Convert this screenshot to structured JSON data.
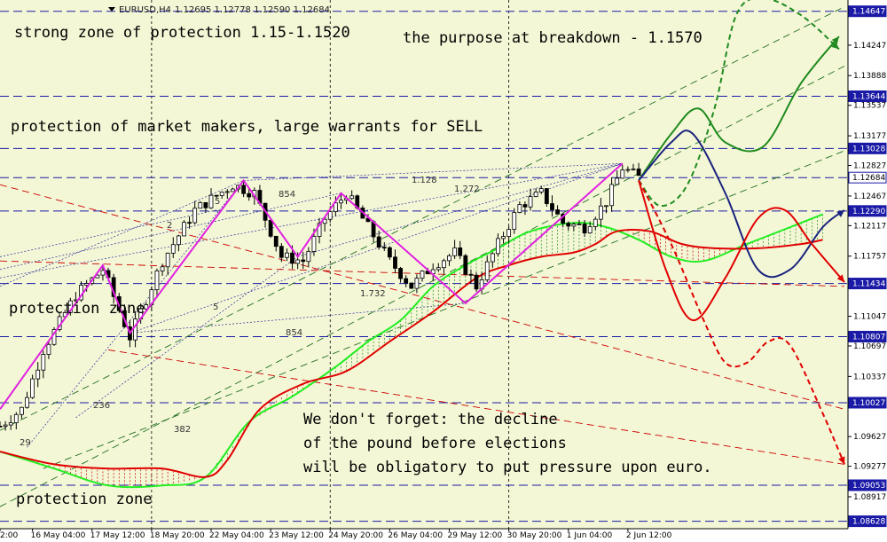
{
  "header": {
    "symbol": "EURUSD,H4",
    "ohlc": "1.12695 1.12778 1.12590 1.12684"
  },
  "annotations": [
    "strong zone of protection 1.15-1.1520",
    "the purpose at breakdown - 1.1570",
    "protection of market makers, large warrants for SELL",
    "protection zone",
    "protection zone",
    "We don't forget: the decline",
    "of the pound before elections",
    "will be obligatory to put pressure upon euro."
  ],
  "fib_labels": [
    "1.128",
    "1.272",
    "854",
    "1.732",
    "854",
    "5",
    "236",
    "382",
    "2",
    "5",
    "29"
  ],
  "chart_data": {
    "type": "line",
    "symbol": "EURUSD",
    "timeframe": "H4",
    "ylim": [
      1.0854,
      1.1478
    ],
    "xlim": [
      0,
      156
    ],
    "y_ticks": [
      "1.14647",
      "1.14247",
      "1.13888",
      "1.13644",
      "1.13537",
      "1.13177",
      "1.13028",
      "1.12827",
      "1.12684",
      "1.12467",
      "1.12290",
      "1.12117",
      "1.11757",
      "1.11434",
      "1.11047",
      "1.10807",
      "1.10697",
      "1.10337",
      "1.10027",
      "1.09627",
      "1.09277",
      "1.09053",
      "1.08917",
      "1.08628"
    ],
    "highlighted_levels": [
      "1.14647",
      "1.13644",
      "1.13028",
      "1.12684",
      "1.12290",
      "1.11434",
      "1.10807",
      "1.10027",
      "1.09053",
      "1.08628"
    ],
    "x_labels": [
      {
        "i": 0,
        "label": "2:00"
      },
      {
        "i": 6,
        "label": "16 May 04:00"
      },
      {
        "i": 17,
        "label": "17 May 12:00"
      },
      {
        "i": 28,
        "label": "18 May 20:00"
      },
      {
        "i": 39,
        "label": "22 May 04:00"
      },
      {
        "i": 50,
        "label": "23 May 12:00"
      },
      {
        "i": 61,
        "label": "24 May 20:00"
      },
      {
        "i": 72,
        "label": "26 May 04:00"
      },
      {
        "i": 83,
        "label": "29 May 12:00"
      },
      {
        "i": 94,
        "label": "30 May 20:00"
      },
      {
        "i": 105,
        "label": "1 Jun 04:00"
      },
      {
        "i": 116,
        "label": "2 Jun 12:00"
      }
    ],
    "price_anchors": [
      [
        0,
        1.0975
      ],
      [
        4,
        1.0995
      ],
      [
        8,
        1.1065
      ],
      [
        14,
        1.113
      ],
      [
        19,
        1.116
      ],
      [
        24,
        1.108
      ],
      [
        30,
        1.117
      ],
      [
        36,
        1.123
      ],
      [
        43,
        1.126
      ],
      [
        47,
        1.125
      ],
      [
        52,
        1.1175
      ],
      [
        56,
        1.117
      ],
      [
        60,
        1.122
      ],
      [
        64,
        1.125
      ],
      [
        68,
        1.121
      ],
      [
        72,
        1.117
      ],
      [
        76,
        1.114
      ],
      [
        80,
        1.1165
      ],
      [
        84,
        1.118
      ],
      [
        88,
        1.114
      ],
      [
        92,
        1.119
      ],
      [
        96,
        1.1235
      ],
      [
        100,
        1.125
      ],
      [
        104,
        1.1215
      ],
      [
        108,
        1.121
      ],
      [
        112,
        1.124
      ],
      [
        115,
        1.128
      ],
      [
        118,
        1.12684
      ]
    ],
    "zigzag": [
      [
        0,
        1.0995
      ],
      [
        19,
        1.1165
      ],
      [
        24,
        1.1085
      ],
      [
        45,
        1.1265
      ],
      [
        55,
        1.1175
      ],
      [
        63,
        1.125
      ],
      [
        86,
        1.112
      ],
      [
        115,
        1.1285
      ]
    ],
    "kumo_span_a": [
      [
        0,
        1.0945
      ],
      [
        10,
        1.0925
      ],
      [
        20,
        1.0905
      ],
      [
        30,
        1.0905
      ],
      [
        38,
        1.0915
      ],
      [
        46,
        1.098
      ],
      [
        54,
        1.101
      ],
      [
        62,
        1.1045
      ],
      [
        68,
        1.1075
      ],
      [
        74,
        1.11
      ],
      [
        80,
        1.114
      ],
      [
        86,
        1.1165
      ],
      [
        92,
        1.1185
      ],
      [
        98,
        1.1205
      ],
      [
        106,
        1.1215
      ],
      [
        112,
        1.121
      ],
      [
        118,
        1.1195
      ],
      [
        124,
        1.1175
      ],
      [
        130,
        1.117
      ],
      [
        138,
        1.119
      ],
      [
        146,
        1.121
      ],
      [
        152,
        1.1225
      ]
    ],
    "kumo_span_b": [
      [
        0,
        1.0945
      ],
      [
        10,
        1.093
      ],
      [
        20,
        1.0925
      ],
      [
        30,
        1.0925
      ],
      [
        38,
        1.0915
      ],
      [
        42,
        1.0935
      ],
      [
        48,
        1.0995
      ],
      [
        56,
        1.1025
      ],
      [
        64,
        1.104
      ],
      [
        72,
        1.1075
      ],
      [
        80,
        1.111
      ],
      [
        88,
        1.115
      ],
      [
        94,
        1.1165
      ],
      [
        100,
        1.1175
      ],
      [
        106,
        1.118
      ],
      [
        110,
        1.119
      ],
      [
        114,
        1.1205
      ],
      [
        120,
        1.1205
      ],
      [
        126,
        1.119
      ],
      [
        132,
        1.1185
      ],
      [
        140,
        1.1185
      ],
      [
        148,
        1.119
      ],
      [
        152,
        1.1195
      ]
    ],
    "channel_lines": [
      {
        "from": [
          0,
          1.097
        ],
        "to": [
          156,
          1.147
        ],
        "style": "long-dash",
        "color": "#1f6e1f"
      },
      {
        "from": [
          0,
          1.088
        ],
        "to": [
          156,
          1.14
        ],
        "style": "long-dash",
        "color": "#1f6e1f"
      },
      {
        "from": [
          8,
          1.0925
        ],
        "to": [
          156,
          1.13
        ],
        "style": "long-dash",
        "color": "#1f6e1f"
      },
      {
        "from": [
          0,
          1.117
        ],
        "to": [
          156,
          1.114
        ],
        "style": "long-dash",
        "color": "#cc0000"
      },
      {
        "from": [
          0,
          1.126
        ],
        "to": [
          156,
          1.0995
        ],
        "style": "long-dash",
        "color": "#cc0000"
      },
      {
        "from": [
          20,
          1.1065
        ],
        "to": [
          156,
          1.093
        ],
        "style": "long-dash",
        "color": "#cc0000"
      }
    ],
    "forecast_paths": [
      {
        "name": "green-solid",
        "color": "#1f8a1f",
        "style": "solid",
        "points": [
          [
            118,
            1.1265
          ],
          [
            124,
            1.132
          ],
          [
            129,
            1.135
          ],
          [
            134,
            1.131
          ],
          [
            141,
            1.1305
          ],
          [
            148,
            1.138
          ],
          [
            155,
            1.1435
          ]
        ]
      },
      {
        "name": "green-dashed",
        "color": "#1f8a1f",
        "style": "dashed",
        "points": [
          [
            118,
            1.1265
          ],
          [
            122,
            1.1235
          ],
          [
            127,
            1.126
          ],
          [
            132,
            1.135
          ],
          [
            136,
            1.146
          ],
          [
            141,
            1.148
          ],
          [
            148,
            1.146
          ],
          [
            155,
            1.142
          ]
        ]
      },
      {
        "name": "navy",
        "color": "#1a237e",
        "style": "solid",
        "points": [
          [
            118,
            1.1265
          ],
          [
            124,
            1.131
          ],
          [
            128,
            1.132
          ],
          [
            134,
            1.125
          ],
          [
            140,
            1.116
          ],
          [
            146,
            1.116
          ],
          [
            152,
            1.121
          ],
          [
            156,
            1.123
          ]
        ]
      },
      {
        "name": "red-solid",
        "color": "#e00000",
        "style": "solid",
        "points": [
          [
            118,
            1.1265
          ],
          [
            123,
            1.116
          ],
          [
            128,
            1.11
          ],
          [
            134,
            1.115
          ],
          [
            140,
            1.122
          ],
          [
            145,
            1.123
          ],
          [
            150,
            1.119
          ],
          [
            156,
            1.1145
          ]
        ]
      },
      {
        "name": "red-dashed",
        "color": "#e00000",
        "style": "dashed",
        "points": [
          [
            118,
            1.1265
          ],
          [
            124,
            1.119
          ],
          [
            130,
            1.11
          ],
          [
            134,
            1.105
          ],
          [
            138,
            1.105
          ],
          [
            142,
            1.1075
          ],
          [
            146,
            1.107
          ],
          [
            152,
            1.099
          ],
          [
            156,
            1.093
          ]
        ]
      }
    ]
  }
}
